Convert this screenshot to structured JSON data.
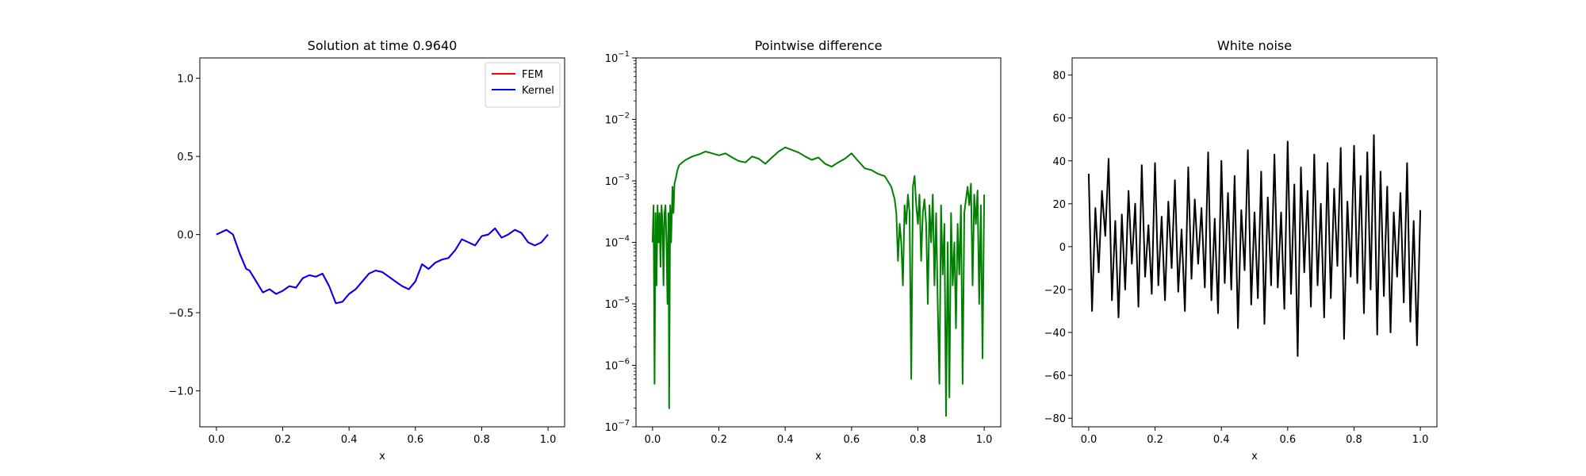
{
  "chart_data": [
    {
      "type": "line",
      "title": "Solution at time 0.9640",
      "xlabel": "x",
      "ylabel": "",
      "xlim": [
        -0.05,
        1.05
      ],
      "ylim": [
        -1.23,
        1.13
      ],
      "xticks": [
        0.0,
        0.2,
        0.4,
        0.6,
        0.8,
        1.0
      ],
      "xtick_labels": [
        "0.0",
        "0.2",
        "0.4",
        "0.6",
        "0.8",
        "1.0"
      ],
      "yticks": [
        -1.0,
        -0.5,
        0.0,
        0.5,
        1.0
      ],
      "ytick_labels": [
        "−1.0",
        "−0.5",
        "0.0",
        "0.5",
        "1.0"
      ],
      "legend_position": "top-right",
      "grid": false,
      "series": [
        {
          "name": "FEM",
          "color": "#ff0000",
          "x": [
            0.0,
            0.03,
            0.05,
            0.07,
            0.09,
            0.1,
            0.12,
            0.14,
            0.16,
            0.18,
            0.2,
            0.22,
            0.24,
            0.26,
            0.28,
            0.3,
            0.32,
            0.34,
            0.36,
            0.38,
            0.4,
            0.42,
            0.44,
            0.46,
            0.48,
            0.5,
            0.52,
            0.54,
            0.56,
            0.58,
            0.6,
            0.62,
            0.64,
            0.66,
            0.68,
            0.7,
            0.72,
            0.74,
            0.76,
            0.78,
            0.8,
            0.82,
            0.84,
            0.86,
            0.88,
            0.9,
            0.92,
            0.94,
            0.96,
            0.98,
            1.0
          ],
          "y": [
            0.0,
            0.03,
            0.0,
            -0.12,
            -0.22,
            -0.23,
            -0.3,
            -0.37,
            -0.35,
            -0.38,
            -0.36,
            -0.33,
            -0.34,
            -0.28,
            -0.26,
            -0.27,
            -0.25,
            -0.33,
            -0.44,
            -0.43,
            -0.38,
            -0.35,
            -0.3,
            -0.25,
            -0.23,
            -0.24,
            -0.27,
            -0.3,
            -0.33,
            -0.35,
            -0.3,
            -0.19,
            -0.22,
            -0.18,
            -0.16,
            -0.15,
            -0.1,
            -0.03,
            -0.05,
            -0.07,
            -0.01,
            0.0,
            0.04,
            -0.02,
            0.0,
            0.03,
            0.01,
            -0.05,
            -0.07,
            -0.05,
            0.0
          ]
        },
        {
          "name": "Kernel",
          "color": "#0000ff",
          "x": [
            0.0,
            0.03,
            0.05,
            0.07,
            0.09,
            0.1,
            0.12,
            0.14,
            0.16,
            0.18,
            0.2,
            0.22,
            0.24,
            0.26,
            0.28,
            0.3,
            0.32,
            0.34,
            0.36,
            0.38,
            0.4,
            0.42,
            0.44,
            0.46,
            0.48,
            0.5,
            0.52,
            0.54,
            0.56,
            0.58,
            0.6,
            0.62,
            0.64,
            0.66,
            0.68,
            0.7,
            0.72,
            0.74,
            0.76,
            0.78,
            0.8,
            0.82,
            0.84,
            0.86,
            0.88,
            0.9,
            0.92,
            0.94,
            0.96,
            0.98,
            1.0
          ],
          "y": [
            0.0,
            0.03,
            0.0,
            -0.12,
            -0.22,
            -0.23,
            -0.3,
            -0.37,
            -0.35,
            -0.38,
            -0.36,
            -0.33,
            -0.34,
            -0.28,
            -0.26,
            -0.27,
            -0.25,
            -0.33,
            -0.44,
            -0.43,
            -0.38,
            -0.35,
            -0.3,
            -0.25,
            -0.23,
            -0.24,
            -0.27,
            -0.3,
            -0.33,
            -0.35,
            -0.3,
            -0.19,
            -0.22,
            -0.18,
            -0.16,
            -0.15,
            -0.1,
            -0.03,
            -0.05,
            -0.07,
            -0.01,
            0.0,
            0.04,
            -0.02,
            0.0,
            0.03,
            0.01,
            -0.05,
            -0.07,
            -0.05,
            0.0
          ]
        }
      ]
    },
    {
      "type": "line",
      "title": "Pointwise difference",
      "xlabel": "x",
      "ylabel": "",
      "yscale": "log",
      "xlim": [
        -0.05,
        1.05
      ],
      "ylim": [
        1e-07,
        0.1
      ],
      "xticks": [
        0.0,
        0.2,
        0.4,
        0.6,
        0.8,
        1.0
      ],
      "xtick_labels": [
        "0.0",
        "0.2",
        "0.4",
        "0.6",
        "0.8",
        "1.0"
      ],
      "yticks": [
        1e-07,
        1e-06,
        1e-05,
        0.0001,
        0.001,
        0.01,
        0.1
      ],
      "ytick_bases": [
        "10",
        "10",
        "10",
        "10",
        "10",
        "10",
        "10"
      ],
      "ytick_exponents": [
        "−7",
        "−6",
        "−5",
        "−4",
        "−3",
        "−2",
        "−1"
      ],
      "grid": false,
      "series": [
        {
          "color": "#008000",
          "x": [
            0.0,
            0.003,
            0.006,
            0.009,
            0.012,
            0.015,
            0.018,
            0.021,
            0.024,
            0.027,
            0.03,
            0.033,
            0.036,
            0.039,
            0.042,
            0.045,
            0.048,
            0.05,
            0.053,
            0.056,
            0.06,
            0.063,
            0.066,
            0.07,
            0.075,
            0.08,
            0.09,
            0.1,
            0.12,
            0.14,
            0.16,
            0.18,
            0.2,
            0.22,
            0.24,
            0.26,
            0.28,
            0.3,
            0.32,
            0.34,
            0.36,
            0.38,
            0.4,
            0.42,
            0.44,
            0.46,
            0.48,
            0.5,
            0.52,
            0.54,
            0.56,
            0.58,
            0.6,
            0.62,
            0.64,
            0.66,
            0.68,
            0.7,
            0.72,
            0.73,
            0.735,
            0.74,
            0.745,
            0.75,
            0.755,
            0.76,
            0.765,
            0.77,
            0.775,
            0.78,
            0.785,
            0.79,
            0.795,
            0.8,
            0.805,
            0.81,
            0.815,
            0.82,
            0.825,
            0.83,
            0.835,
            0.84,
            0.845,
            0.85,
            0.855,
            0.86,
            0.865,
            0.87,
            0.875,
            0.88,
            0.885,
            0.89,
            0.895,
            0.9,
            0.905,
            0.91,
            0.915,
            0.92,
            0.925,
            0.93,
            0.935,
            0.94,
            0.945,
            0.95,
            0.955,
            0.96,
            0.965,
            0.97,
            0.975,
            0.98,
            0.985,
            0.99,
            0.995,
            1.0
          ],
          "y": [
            0.0001,
            0.0004,
            5e-07,
            0.0003,
            2e-05,
            0.0004,
            0.0001,
            0.0003,
            4e-05,
            0.0004,
            0.0002,
            2e-05,
            0.0003,
            0.0004,
            0.0001,
            1e-05,
            0.0003,
            2e-07,
            0.0004,
            0.0001,
            0.0008,
            0.0003,
            0.0009,
            0.0011,
            0.0015,
            0.0018,
            0.002,
            0.0022,
            0.0025,
            0.0027,
            0.003,
            0.0028,
            0.0026,
            0.0028,
            0.0024,
            0.0021,
            0.002,
            0.0025,
            0.0023,
            0.0019,
            0.0024,
            0.003,
            0.0035,
            0.0032,
            0.0029,
            0.0025,
            0.0022,
            0.0024,
            0.0019,
            0.0017,
            0.002,
            0.0023,
            0.0028,
            0.0021,
            0.0016,
            0.0015,
            0.0013,
            0.0012,
            0.0008,
            0.0005,
            0.0003,
            5e-05,
            0.0002,
            0.0001,
            2e-05,
            0.0004,
            0.0002,
            0.0006,
            0.0003,
            6e-07,
            0.0008,
            0.0012,
            0.0004,
            0.0002,
            0.0006,
            5e-05,
            0.0003,
            0.0005,
            0.0002,
            1e-05,
            0.0004,
            0.0001,
            0.0006,
            2e-05,
            0.0003,
            1e-05,
            5e-07,
            0.0004,
            3e-05,
            0.0002,
            1.5e-07,
            0.0001,
            3e-07,
            0.0003,
            2e-05,
            0.0001,
            4e-06,
            0.0002,
            3e-05,
            0.0004,
            5e-07,
            0.0003,
            0.0005,
            0.0008,
            0.0004,
            0.0009,
            2e-05,
            0.0006,
            0.0002,
            0.0007,
            1e-05,
            0.0004,
            1.3e-06,
            0.0006
          ]
        }
      ]
    },
    {
      "type": "line",
      "title": "White noise",
      "xlabel": "x",
      "ylabel": "",
      "xlim": [
        -0.05,
        1.05
      ],
      "ylim": [
        -84,
        88
      ],
      "xticks": [
        0.0,
        0.2,
        0.4,
        0.6,
        0.8,
        1.0
      ],
      "xtick_labels": [
        "0.0",
        "0.2",
        "0.4",
        "0.6",
        "0.8",
        "1.0"
      ],
      "yticks": [
        -80,
        -60,
        -40,
        -20,
        0,
        20,
        40,
        60,
        80
      ],
      "ytick_labels": [
        "−80",
        "−60",
        "−40",
        "−20",
        "0",
        "20",
        "40",
        "60",
        "80"
      ],
      "grid": false,
      "series": [
        {
          "color": "#000000",
          "x": [
            0.0,
            0.01,
            0.02,
            0.03,
            0.04,
            0.05,
            0.06,
            0.07,
            0.08,
            0.09,
            0.1,
            0.11,
            0.12,
            0.13,
            0.14,
            0.15,
            0.16,
            0.17,
            0.18,
            0.19,
            0.2,
            0.21,
            0.22,
            0.23,
            0.24,
            0.25,
            0.26,
            0.27,
            0.28,
            0.29,
            0.3,
            0.31,
            0.32,
            0.33,
            0.34,
            0.35,
            0.36,
            0.37,
            0.38,
            0.39,
            0.4,
            0.41,
            0.42,
            0.43,
            0.44,
            0.45,
            0.46,
            0.47,
            0.48,
            0.49,
            0.5,
            0.51,
            0.52,
            0.53,
            0.54,
            0.55,
            0.56,
            0.57,
            0.58,
            0.59,
            0.6,
            0.61,
            0.62,
            0.63,
            0.64,
            0.65,
            0.66,
            0.67,
            0.68,
            0.69,
            0.7,
            0.71,
            0.72,
            0.73,
            0.74,
            0.75,
            0.76,
            0.77,
            0.78,
            0.79,
            0.8,
            0.81,
            0.82,
            0.83,
            0.84,
            0.85,
            0.86,
            0.87,
            0.88,
            0.89,
            0.9,
            0.91,
            0.92,
            0.93,
            0.94,
            0.95,
            0.96,
            0.97,
            0.98,
            0.99,
            1.0
          ],
          "y": [
            34,
            -30,
            18,
            -12,
            26,
            5,
            41,
            -25,
            12,
            -33,
            15,
            -20,
            26,
            -8,
            20,
            -28,
            38,
            -14,
            10,
            -22,
            39,
            -18,
            14,
            -25,
            21,
            -10,
            31,
            -21,
            8,
            -30,
            37,
            -15,
            22,
            -8,
            18,
            -19,
            44,
            -25,
            13,
            -31,
            40,
            -17,
            25,
            -20,
            33,
            -38,
            17,
            -11,
            45,
            -27,
            16,
            -24,
            35,
            -36,
            23,
            -18,
            43,
            -19,
            16,
            -29,
            49,
            -22,
            29,
            -51,
            37,
            -12,
            26,
            -28,
            43,
            -18,
            20,
            -33,
            39,
            -24,
            27,
            -9,
            46,
            -43,
            21,
            -14,
            47,
            -17,
            33,
            -31,
            44,
            -20,
            52,
            -41,
            35,
            -23,
            28,
            -40,
            16,
            -14,
            25,
            -26,
            39,
            -35,
            12,
            -46,
            17
          ]
        }
      ]
    }
  ]
}
